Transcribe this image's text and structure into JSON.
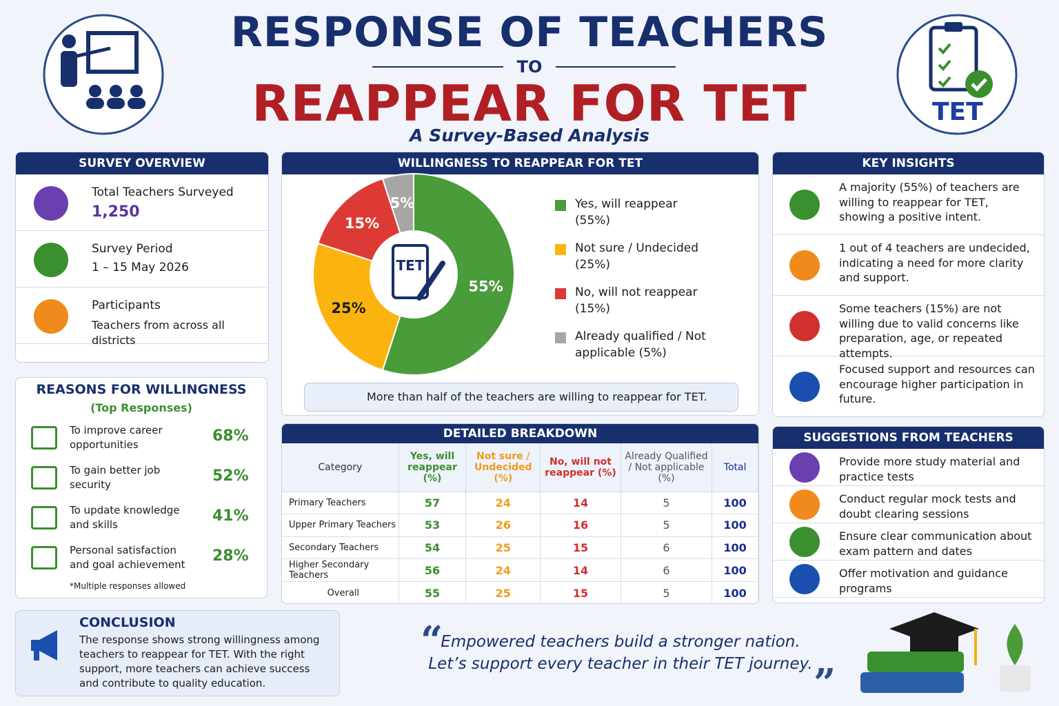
{
  "header": {
    "title_line1": "RESPONSE OF TEACHERS",
    "connector": "TO",
    "title_line2": "REAPPEAR FOR TET",
    "subtitle": "A Survey-Based Analysis",
    "badge": "TET"
  },
  "survey_overview": {
    "title": "SURVEY OVERVIEW",
    "items": [
      {
        "label": "Total Teachers Surveyed",
        "value": "1,250"
      },
      {
        "label": "Survey Period",
        "value": "1 – 15 May 2026"
      },
      {
        "label": "Participants",
        "value": "Teachers from across all districts"
      }
    ]
  },
  "chart_data": {
    "type": "pie",
    "title": "WILLINGNESS TO REAPPEAR FOR TET",
    "categories": [
      "Yes, will reappear (55%)",
      "Not sure / Undecided (25%)",
      "No, will not reappear (15%)",
      "Already qualified / Not applicable (5%)"
    ],
    "values": [
      55,
      25,
      15,
      5
    ],
    "value_labels": [
      "55%",
      "25%",
      "15%",
      "5%"
    ],
    "colors": [
      "#4a9b3a",
      "#fbb40f",
      "#dd3a35",
      "#a6a6a6"
    ],
    "center_label": "TET",
    "note": "More than half of the teachers are willing to reappear for TET."
  },
  "reasons": {
    "title": "REASONS FOR WILLINGNESS",
    "subtitle": "(Top Responses)",
    "items": [
      {
        "text": "To improve career opportunities",
        "value": "68%"
      },
      {
        "text": "To gain better job security",
        "value": "52%"
      },
      {
        "text": "To update knowledge and skills",
        "value": "41%"
      },
      {
        "text": "Personal satisfaction and goal achievement",
        "value": "28%"
      }
    ],
    "footnote": "*Multiple responses allowed"
  },
  "breakdown": {
    "title": "DETAILED BREAKDOWN",
    "columns": [
      "Category",
      "Yes, will reappear (%)",
      "Not sure / Undecided (%)",
      "No, will not reappear (%)",
      "Already Qualified / Not applicable (%)",
      "Total"
    ],
    "rows": [
      [
        "Primary Teachers",
        57,
        24,
        14,
        5,
        100
      ],
      [
        "Upper Primary Teachers",
        53,
        26,
        16,
        5,
        100
      ],
      [
        "Secondary Teachers",
        54,
        25,
        15,
        6,
        100
      ],
      [
        "Higher Secondary Teachers",
        56,
        24,
        14,
        6,
        100
      ],
      [
        "Overall",
        55,
        25,
        15,
        5,
        100
      ]
    ]
  },
  "key_insights": {
    "title": "KEY INSIGHTS",
    "items": [
      "A majority (55%) of teachers are willing to reappear for TET, showing a positive intent.",
      "1 out of 4 teachers are undecided, indicating a need for more clarity and support.",
      "Some teachers (15%) are not willing due to valid concerns like preparation, age, or repeated attempts.",
      "Focused support and resources can encourage higher participation in future."
    ]
  },
  "suggestions": {
    "title": "SUGGESTIONS FROM TEACHERS",
    "items": [
      "Provide more study material and practice tests",
      "Conduct regular mock tests and doubt clearing sessions",
      "Ensure clear communication about exam pattern and dates",
      "Offer motivation and guidance programs"
    ]
  },
  "conclusion": {
    "title": "CONCLUSION",
    "text": "The response shows strong willingness among teachers to reappear for TET.  With the right support, more teachers can achieve success and contribute to quality education."
  },
  "quote": {
    "line1": "Empowered teachers build a stronger nation.",
    "line2": "Let’s support every teacher in their TET journey."
  }
}
